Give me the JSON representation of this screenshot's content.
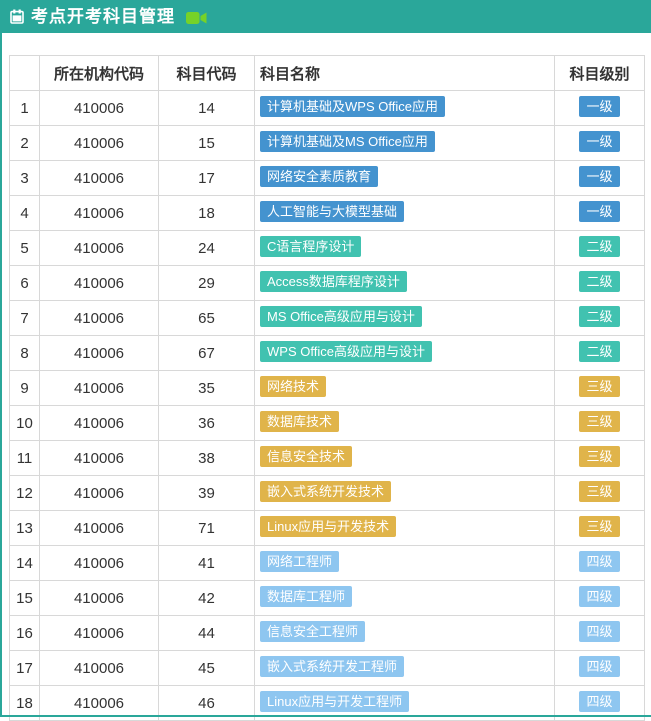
{
  "panel": {
    "title": "考点开考科目管理",
    "header_bg": "#2aa79a",
    "camera_icon_color": "#76d228",
    "title_icon": "calendar-icon",
    "title_suffix_icon": "video-camera-icon"
  },
  "table": {
    "columns": {
      "index": "",
      "org_code": "所在机构代码",
      "subject_code": "科目代码",
      "subject_name": "科目名称",
      "subject_level": "科目级别"
    },
    "rows": [
      {
        "index": "1",
        "org_code": "410006",
        "subject_code": "14",
        "subject_name": "计算机基础及WPS Office应用",
        "level": "一级"
      },
      {
        "index": "2",
        "org_code": "410006",
        "subject_code": "15",
        "subject_name": "计算机基础及MS Office应用",
        "level": "一级"
      },
      {
        "index": "3",
        "org_code": "410006",
        "subject_code": "17",
        "subject_name": "网络安全素质教育",
        "level": "一级"
      },
      {
        "index": "4",
        "org_code": "410006",
        "subject_code": "18",
        "subject_name": "人工智能与大模型基础",
        "level": "一级"
      },
      {
        "index": "5",
        "org_code": "410006",
        "subject_code": "24",
        "subject_name": "C语言程序设计",
        "level": "二级"
      },
      {
        "index": "6",
        "org_code": "410006",
        "subject_code": "29",
        "subject_name": "Access数据库程序设计",
        "level": "二级"
      },
      {
        "index": "7",
        "org_code": "410006",
        "subject_code": "65",
        "subject_name": "MS Office高级应用与设计",
        "level": "二级"
      },
      {
        "index": "8",
        "org_code": "410006",
        "subject_code": "67",
        "subject_name": "WPS Office高级应用与设计",
        "level": "二级"
      },
      {
        "index": "9",
        "org_code": "410006",
        "subject_code": "35",
        "subject_name": "网络技术",
        "level": "三级"
      },
      {
        "index": "10",
        "org_code": "410006",
        "subject_code": "36",
        "subject_name": "数据库技术",
        "level": "三级"
      },
      {
        "index": "11",
        "org_code": "410006",
        "subject_code": "38",
        "subject_name": "信息安全技术",
        "level": "三级"
      },
      {
        "index": "12",
        "org_code": "410006",
        "subject_code": "39",
        "subject_name": "嵌入式系统开发技术",
        "level": "三级"
      },
      {
        "index": "13",
        "org_code": "410006",
        "subject_code": "71",
        "subject_name": "Linux应用与开发技术",
        "level": "三级"
      },
      {
        "index": "14",
        "org_code": "410006",
        "subject_code": "41",
        "subject_name": "网络工程师",
        "level": "四级"
      },
      {
        "index": "15",
        "org_code": "410006",
        "subject_code": "42",
        "subject_name": "数据库工程师",
        "level": "四级"
      },
      {
        "index": "16",
        "org_code": "410006",
        "subject_code": "44",
        "subject_name": "信息安全工程师",
        "level": "四级"
      },
      {
        "index": "17",
        "org_code": "410006",
        "subject_code": "45",
        "subject_name": "嵌入式系统开发工程师",
        "level": "四级"
      },
      {
        "index": "18",
        "org_code": "410006",
        "subject_code": "46",
        "subject_name": "Linux应用与开发工程师",
        "level": "四级"
      }
    ]
  },
  "level_colors": {
    "一级": "#4493cf",
    "二级": "#41c2b0",
    "三级": "#e0b44a",
    "四级": "#8ec6f0"
  },
  "border_color": "#2aa79a"
}
